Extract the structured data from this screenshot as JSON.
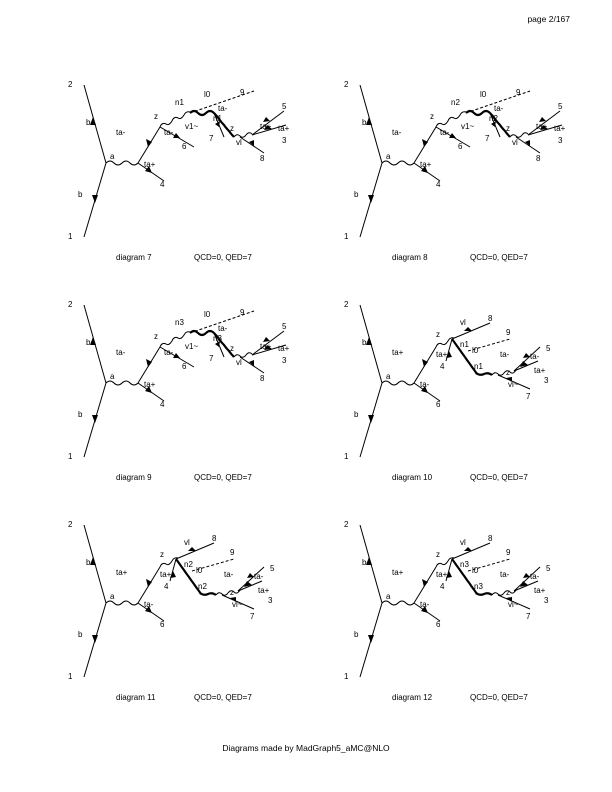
{
  "page_label": "page 2/167",
  "footer": "Diagrams made by MadGraph5_aMC@NLO",
  "diagrams": [
    {
      "name": "diagram 7",
      "couplings": "QCD=0, QED=7",
      "labels": [
        "2",
        "b~",
        "ta-",
        "b",
        "1",
        "a",
        "ta+",
        "4",
        "z",
        "ta-",
        "6",
        "n1",
        "l0",
        "9",
        "v1~",
        "n1",
        "ta-",
        "7",
        "z",
        "ta+",
        "5",
        "ta+",
        "3",
        "vl",
        "8"
      ]
    },
    {
      "name": "diagram 8",
      "couplings": "QCD=0, QED=7",
      "labels": [
        "2",
        "b~",
        "ta-",
        "b",
        "1",
        "a",
        "ta+",
        "4",
        "z",
        "ta-",
        "6",
        "n2",
        "l0",
        "9",
        "v1~",
        "n2",
        "ta-",
        "7",
        "z",
        "ta+",
        "5",
        "ta+",
        "3",
        "vl",
        "8"
      ]
    },
    {
      "name": "diagram 9",
      "couplings": "QCD=0, QED=7",
      "labels": [
        "2",
        "b~",
        "ta-",
        "b",
        "1",
        "a",
        "ta+",
        "4",
        "z",
        "ta-",
        "6",
        "n3",
        "l0",
        "9",
        "v1~",
        "n3",
        "ta-",
        "7",
        "z",
        "ta+",
        "5",
        "ta+",
        "3",
        "vl",
        "8"
      ]
    },
    {
      "name": "diagram 10",
      "couplings": "QCD=0, QED=7",
      "labels": [
        "2",
        "b~",
        "ta+",
        "b",
        "1",
        "a",
        "ta-",
        "6",
        "z",
        "vl",
        "8",
        "ta+",
        "4",
        "n1",
        "l0",
        "9",
        "n1",
        "ta-",
        "z",
        "ta-",
        "5",
        "ta+",
        "3",
        "vl~",
        "7"
      ]
    },
    {
      "name": "diagram 11",
      "couplings": "QCD=0, QED=7",
      "labels": [
        "2",
        "b~",
        "ta+",
        "b",
        "1",
        "a",
        "ta-",
        "6",
        "z",
        "vl",
        "8",
        "ta+",
        "4",
        "n2",
        "l0",
        "9",
        "n2",
        "ta-",
        "z",
        "ta-",
        "5",
        "ta+",
        "3",
        "vl~",
        "7"
      ]
    },
    {
      "name": "diagram 12",
      "couplings": "QCD=0, QED=7",
      "labels": [
        "2",
        "b~",
        "ta+",
        "b",
        "1",
        "a",
        "ta-",
        "6",
        "z",
        "vl",
        "8",
        "ta+",
        "4",
        "n3",
        "l0",
        "9",
        "n3",
        "ta-",
        "z",
        "ta-",
        "5",
        "ta+",
        "3",
        "vl~",
        "7"
      ]
    }
  ]
}
